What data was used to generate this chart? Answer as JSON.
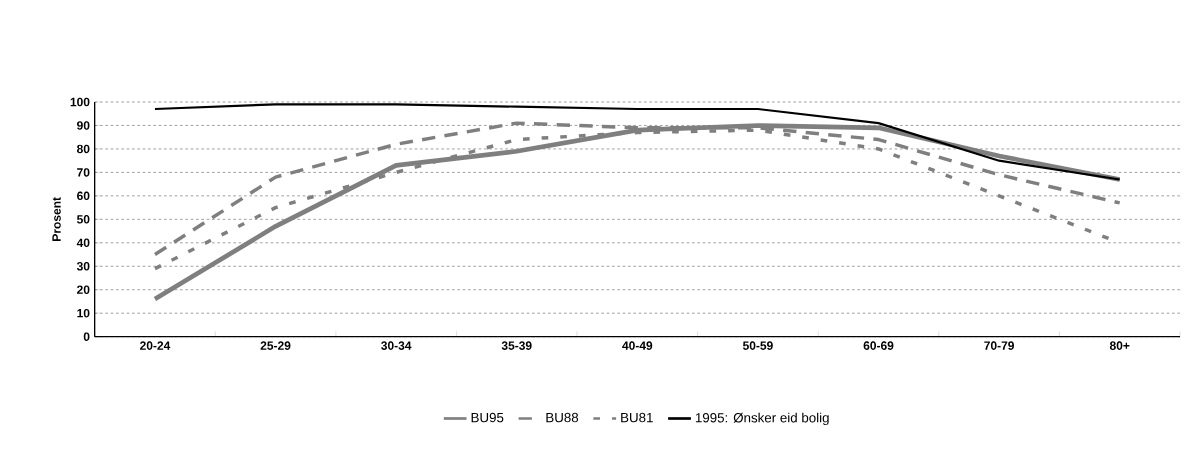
{
  "chart_data": {
    "type": "line",
    "ylabel": "Prosent",
    "categories": [
      "20-24",
      "25-29",
      "30-34",
      "35-39",
      "40-49",
      "50-59",
      "60-69",
      "70-79",
      "80+"
    ],
    "series": [
      {
        "name": "BU95",
        "color": "#7f7f7f",
        "line_style": "solid",
        "values": [
          16,
          47,
          73,
          79,
          88,
          90,
          89,
          77,
          67
        ]
      },
      {
        "name": "BU88",
        "color": "#7f7f7f",
        "line_style": "dashed",
        "values": [
          35,
          68,
          82,
          91,
          89,
          89,
          84,
          69,
          57
        ]
      },
      {
        "name": "BU81",
        "color": "#7f7f7f",
        "line_style": "dotted",
        "values": [
          29,
          55,
          70,
          84,
          87,
          88,
          80,
          60,
          40
        ]
      },
      {
        "name": "1995: Ønsker eid bolig",
        "color": "#000000",
        "line_style": "solid",
        "values": [
          97,
          99,
          99,
          98,
          97,
          97,
          91,
          75,
          67
        ]
      }
    ],
    "ylim": [
      0,
      100
    ],
    "yticks": [
      0,
      10,
      20,
      30,
      40,
      50,
      60,
      70,
      80,
      90,
      100
    ],
    "grid": "y",
    "legend": "bottom",
    "marker": "none"
  }
}
